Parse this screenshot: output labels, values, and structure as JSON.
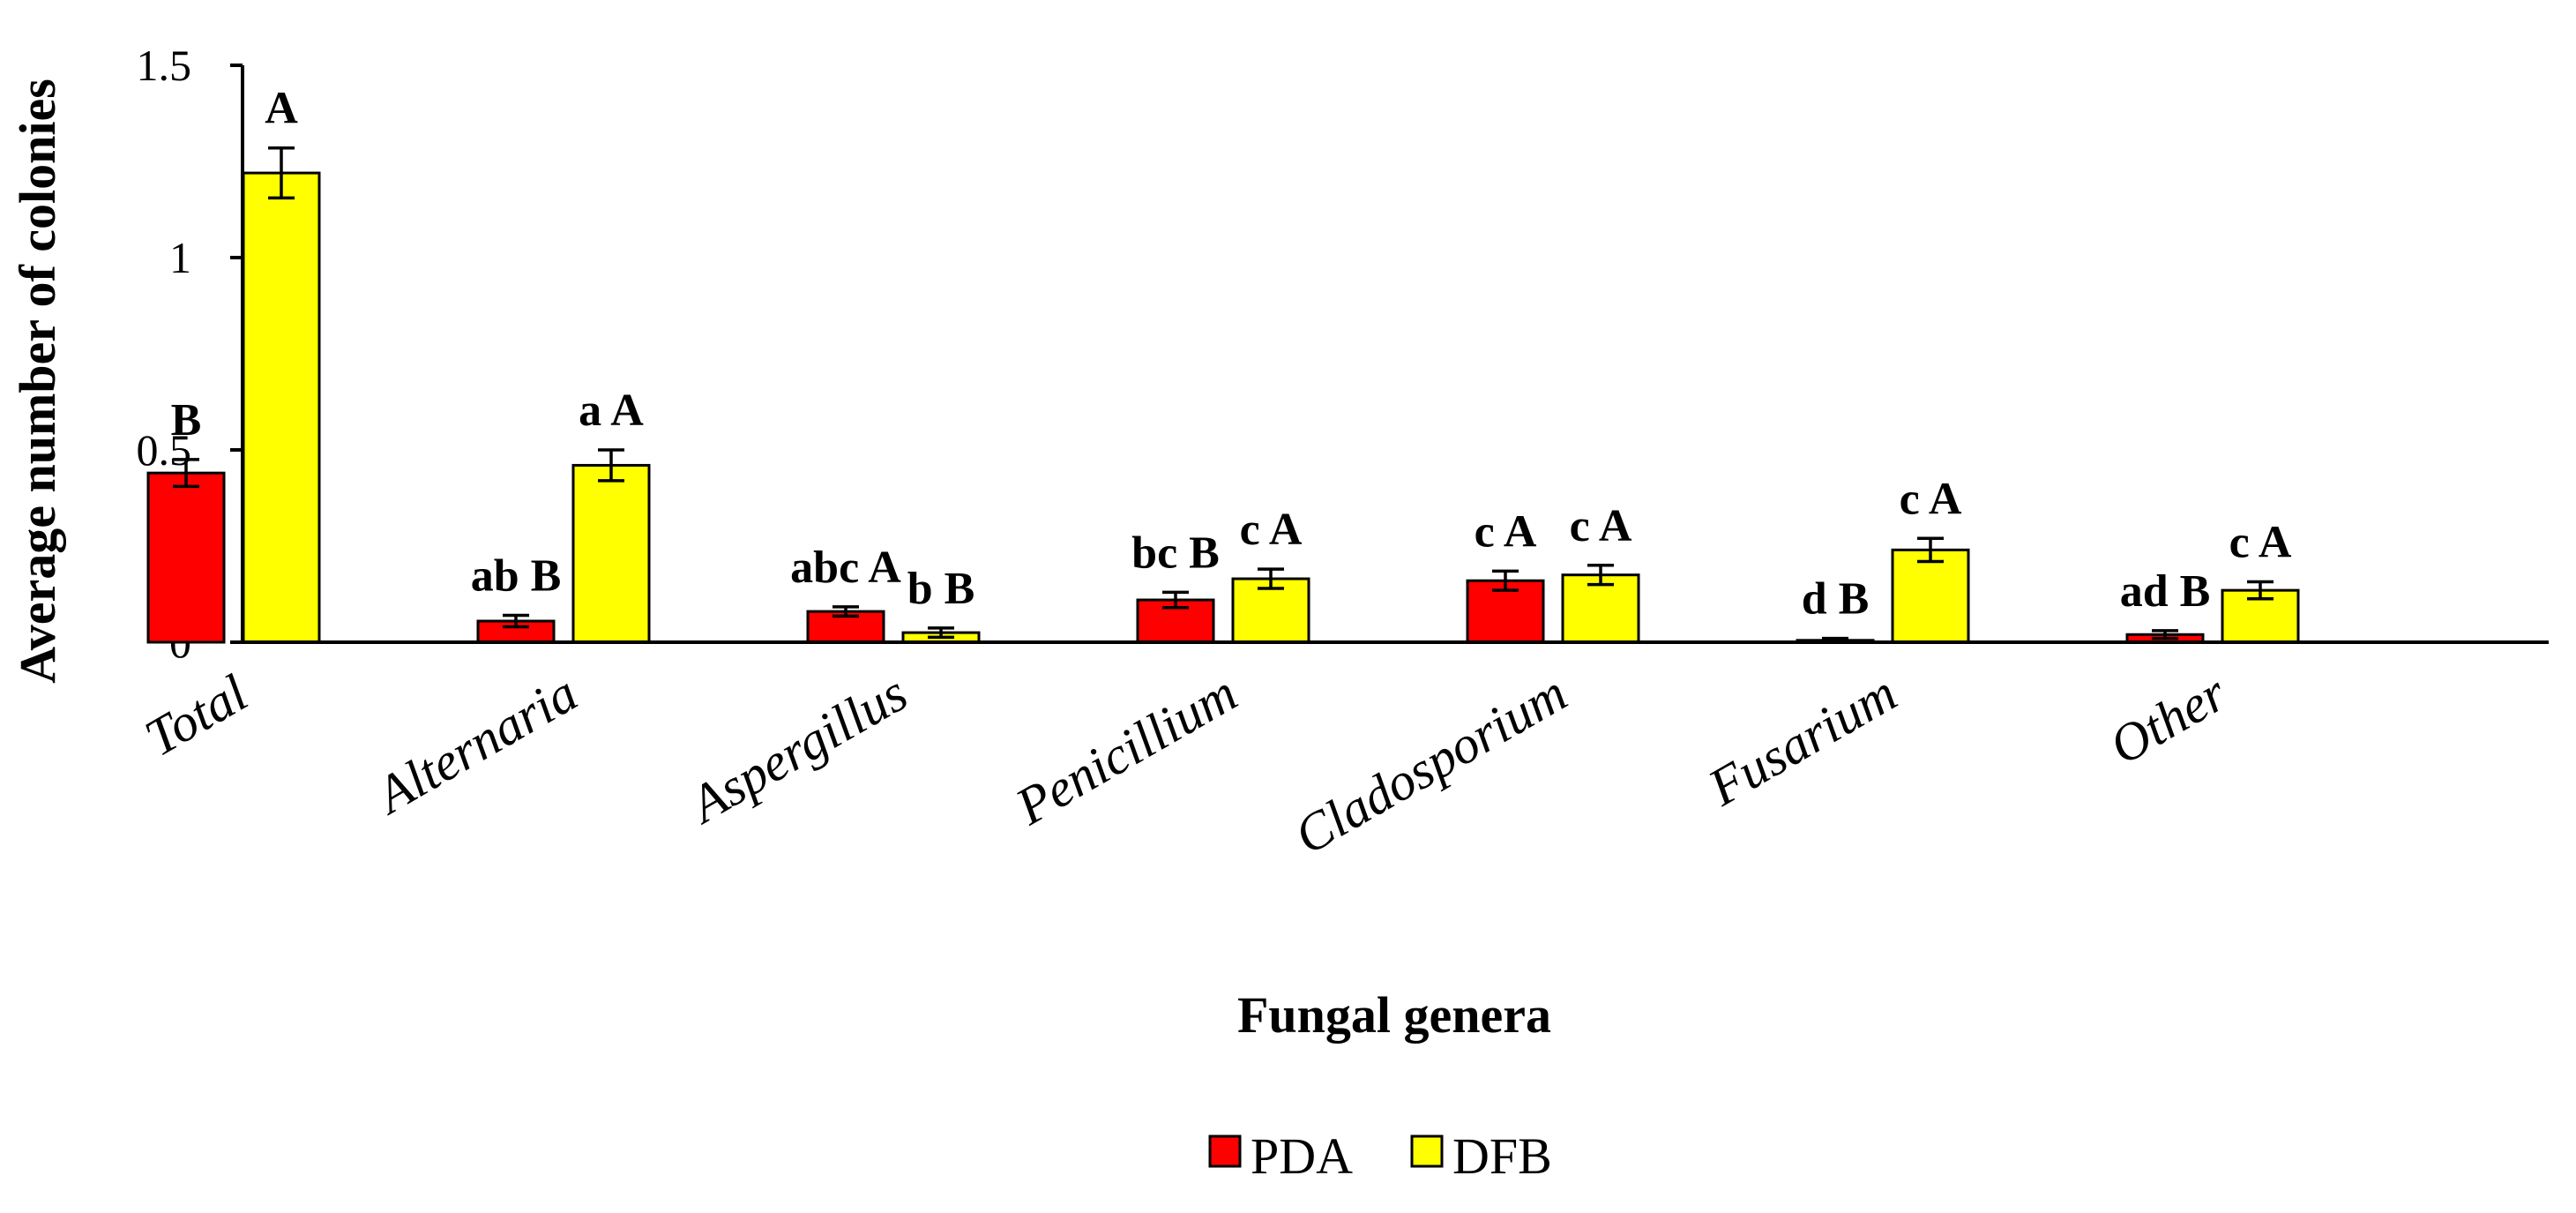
{
  "chart_data": {
    "type": "bar",
    "title": "",
    "xlabel": "Fungal genera",
    "ylabel": "Average number of colonies",
    "ylim": [
      0,
      1.5
    ],
    "yticks": [
      "0",
      "0.5",
      "1",
      "1.5"
    ],
    "ytick_values": [
      0,
      0.5,
      1,
      1.5
    ],
    "grid": false,
    "legend_position": "bottom-center",
    "categories": [
      "Total",
      "Alternaria",
      "Aspergillus",
      "Penicillium",
      "Cladosporium",
      "Fusarium",
      "Other"
    ],
    "series": [
      {
        "name": "PDA",
        "color": "#ff0000",
        "values": [
          0.44,
          0.055,
          0.08,
          0.11,
          0.16,
          0.005,
          0.02
        ],
        "errors": [
          0.035,
          0.015,
          0.012,
          0.02,
          0.025,
          0.005,
          0.01
        ],
        "labels": [
          "B",
          "ab B",
          "abc A",
          "bc B",
          "c A",
          "d B",
          "ad B"
        ]
      },
      {
        "name": "DFB",
        "color": "#ffff00",
        "values": [
          1.22,
          0.46,
          0.025,
          0.165,
          0.175,
          0.24,
          0.135
        ],
        "errors": [
          0.065,
          0.04,
          0.012,
          0.025,
          0.025,
          0.03,
          0.022
        ],
        "labels": [
          "A",
          "a A",
          "b B",
          "c A",
          "c A",
          "c A",
          "c A"
        ]
      }
    ]
  }
}
